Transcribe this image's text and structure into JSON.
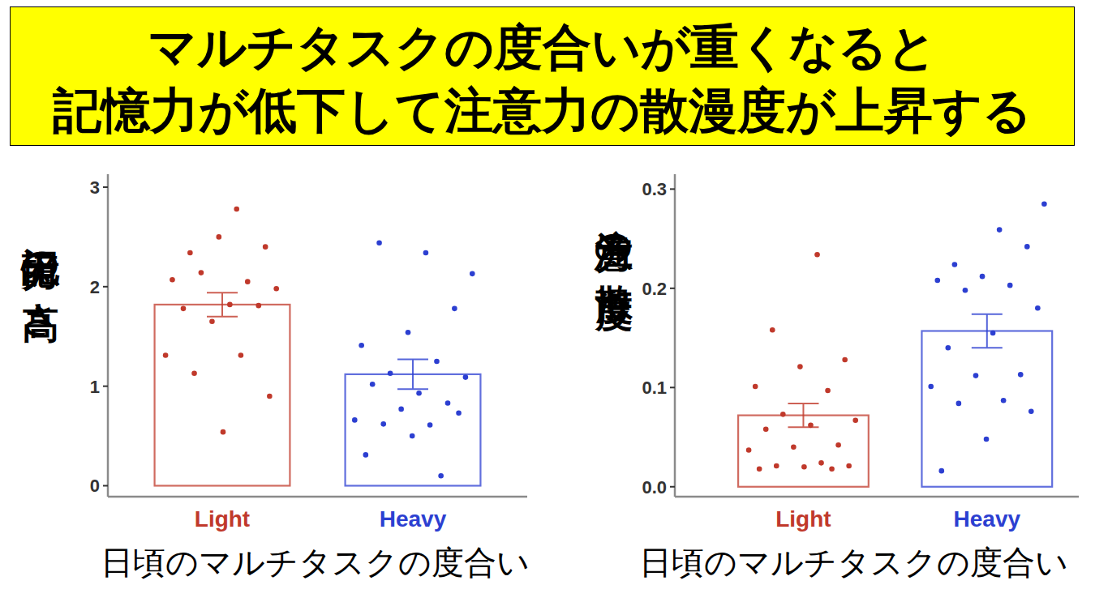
{
  "header": {
    "lines": [
      "マルチタスクの度合いが重くなると",
      "記憶力が低下して注意力の散漫度が上昇する"
    ]
  },
  "chart_data": [
    {
      "type": "bar",
      "y_label": "記憶力の高さ",
      "x_label": "日頃のマルチタスクの度合い",
      "categories": [
        "Light",
        "Heavy"
      ],
      "values": [
        1.82,
        1.12
      ],
      "errors": [
        0.12,
        0.15
      ],
      "colors": [
        "#c0392b",
        "#2c3fd1"
      ],
      "points": [
        [
          2.78,
          2.34,
          2.4,
          2.5,
          2.07,
          2.05,
          2.14,
          1.98,
          1.82,
          1.78,
          1.81,
          1.65,
          1.31,
          1.31,
          1.13,
          0.9,
          0.54
        ],
        [
          2.13,
          2.34,
          2.44,
          1.78,
          1.54,
          1.41,
          1.25,
          1.13,
          1.09,
          0.93,
          1.02,
          0.83,
          0.77,
          0.66,
          0.61,
          0.62,
          0.73,
          0.5,
          0.31,
          0.1
        ]
      ],
      "ylim": [
        -0.11,
        3.13
      ],
      "yticks": [
        0,
        1,
        2,
        3
      ]
    },
    {
      "type": "bar",
      "y_label": "注意力の散漫度",
      "x_label": "日頃のマルチタスクの度合い",
      "categories": [
        "Light",
        "Heavy"
      ],
      "values": [
        0.072,
        0.157
      ],
      "errors": [
        0.012,
        0.017
      ],
      "colors": [
        "#c0392b",
        "#2c3fd1"
      ],
      "points": [
        [
          0.234,
          0.158,
          0.128,
          0.121,
          0.101,
          0.097,
          0.073,
          0.067,
          0.062,
          0.058,
          0.042,
          0.04,
          0.037,
          0.024,
          0.021,
          0.021,
          0.02,
          0.018,
          0.018
        ],
        [
          0.285,
          0.259,
          0.224,
          0.242,
          0.212,
          0.208,
          0.203,
          0.198,
          0.18,
          0.155,
          0.14,
          0.113,
          0.112,
          0.101,
          0.087,
          0.084,
          0.076,
          0.048,
          0.016
        ]
      ],
      "ylim": [
        -0.01,
        0.315
      ],
      "yticks": [
        {
          "value": 0,
          "label": "0.0"
        },
        {
          "value": 0.1,
          "label": "0.1"
        },
        {
          "value": 0.2,
          "label": "0.2"
        },
        {
          "value": 0.3,
          "label": "0.3"
        }
      ]
    }
  ]
}
